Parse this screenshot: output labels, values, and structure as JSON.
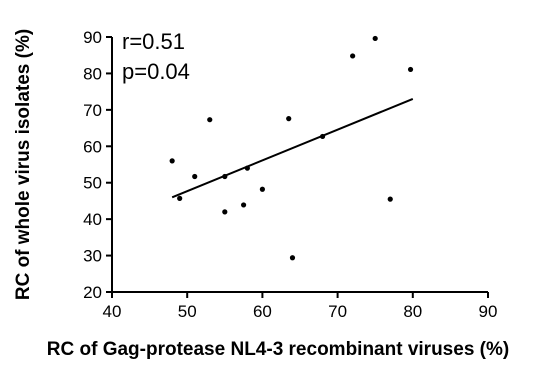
{
  "chart_data": {
    "type": "scatter",
    "title": "",
    "xlabel": "RC of Gag-protease NL4-3 recombinant viruses (%)",
    "ylabel": "RC of whole virus isolates (%)",
    "xlim": [
      40,
      90
    ],
    "ylim": [
      20,
      90
    ],
    "xticks": [
      40,
      50,
      60,
      70,
      80,
      90
    ],
    "yticks": [
      20,
      30,
      40,
      50,
      60,
      70,
      80,
      90
    ],
    "xtick_labels": [
      "40",
      "50",
      "60",
      "70",
      "80",
      "90"
    ],
    "ytick_labels": [
      "20",
      "30",
      "40",
      "50",
      "60",
      "70",
      "80",
      "90"
    ],
    "grid": false,
    "points": [
      {
        "x": 48.0,
        "y": 56.0
      },
      {
        "x": 49.0,
        "y": 45.7
      },
      {
        "x": 51.0,
        "y": 51.7
      },
      {
        "x": 53.0,
        "y": 67.3
      },
      {
        "x": 55.0,
        "y": 51.7
      },
      {
        "x": 55.0,
        "y": 42.0
      },
      {
        "x": 57.5,
        "y": 43.9
      },
      {
        "x": 58.0,
        "y": 54.0
      },
      {
        "x": 60.0,
        "y": 48.2
      },
      {
        "x": 63.5,
        "y": 67.6
      },
      {
        "x": 64.0,
        "y": 29.4
      },
      {
        "x": 68.0,
        "y": 62.7
      },
      {
        "x": 72.0,
        "y": 84.8
      },
      {
        "x": 75.0,
        "y": 89.6
      },
      {
        "x": 77.0,
        "y": 45.5
      },
      {
        "x": 79.7,
        "y": 81.1
      }
    ],
    "regression_line": {
      "x": [
        48,
        80
      ],
      "y": [
        46,
        73
      ]
    },
    "annotations": [
      "r=0.51",
      "p=0.04"
    ]
  }
}
